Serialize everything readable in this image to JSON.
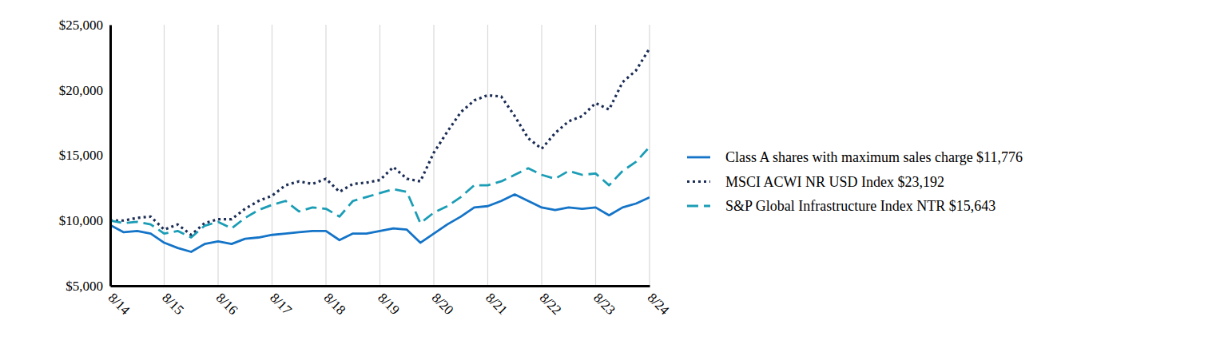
{
  "chart_data": {
    "type": "line",
    "categories": [
      "8/14",
      null,
      null,
      null,
      "8/15",
      null,
      null,
      null,
      "8/16",
      null,
      null,
      null,
      "8/17",
      null,
      null,
      null,
      "8/18",
      null,
      null,
      null,
      "8/19",
      null,
      null,
      null,
      "8/20",
      null,
      null,
      null,
      "8/21",
      null,
      null,
      null,
      "8/22",
      null,
      null,
      null,
      "8/23",
      null,
      null,
      null,
      "8/24"
    ],
    "series": [
      {
        "name": "Class A shares with maximum sales charge $11,776",
        "color": "#1474c8",
        "line_style": "solid",
        "values": [
          9650,
          9100,
          9200,
          9000,
          8300,
          7900,
          7600,
          8200,
          8400,
          8200,
          8600,
          8700,
          8900,
          9000,
          9100,
          9200,
          9200,
          8500,
          9000,
          9000,
          9200,
          9400,
          9300,
          8300,
          9000,
          9700,
          10300,
          11000,
          11100,
          11500,
          12000,
          11500,
          11000,
          10800,
          11000,
          10900,
          11000,
          10400,
          11000,
          11300,
          11776
        ]
      },
      {
        "name": "MSCI ACWI NR USD Index $23,192",
        "color": "#1b2d56",
        "line_style": "dotted",
        "values": [
          10000,
          10000,
          10200,
          10300,
          9300,
          9700,
          8900,
          9800,
          10100,
          10100,
          10900,
          11500,
          11900,
          12700,
          13000,
          12800,
          13200,
          12200,
          12800,
          12900,
          13100,
          14100,
          13200,
          13000,
          15200,
          16800,
          18300,
          19200,
          19600,
          19500,
          18000,
          16300,
          15500,
          16700,
          17600,
          18000,
          19000,
          18500,
          20600,
          21500,
          23192
        ]
      },
      {
        "name": "S&P Global Infrastructure Index NTR $15,643",
        "color": "#1b9db6",
        "line_style": "dashed",
        "values": [
          10000,
          9800,
          9900,
          9700,
          9000,
          9200,
          8700,
          9600,
          9900,
          9400,
          10200,
          10800,
          11200,
          11500,
          10700,
          11000,
          10900,
          10300,
          11500,
          11800,
          12100,
          12400,
          12200,
          9800,
          10600,
          11100,
          11800,
          12700,
          12700,
          13000,
          13500,
          14000,
          13500,
          13200,
          13800,
          13500,
          13600,
          12700,
          13800,
          14500,
          15643
        ]
      }
    ],
    "ylim": [
      5000,
      25000
    ],
    "yticks": [
      {
        "value": 5000,
        "label": "$5,000"
      },
      {
        "value": 10000,
        "label": "$10,000"
      },
      {
        "value": 15000,
        "label": "$15,000"
      },
      {
        "value": 20000,
        "label": "$20,000"
      },
      {
        "value": 25000,
        "label": "$25,000"
      }
    ],
    "grid": "x",
    "legend": "right"
  }
}
